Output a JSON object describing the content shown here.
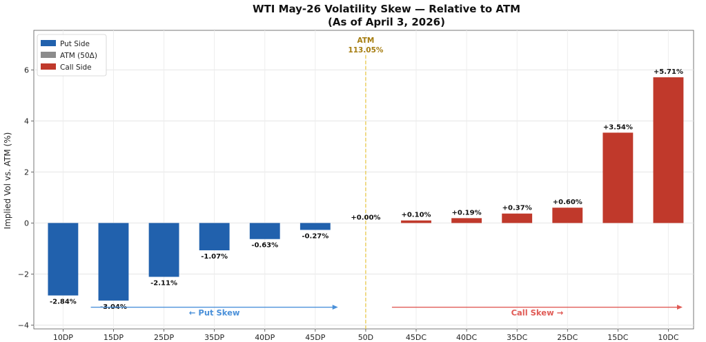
{
  "chart_data": {
    "type": "bar",
    "title_line1": "WTI May-26 Volatility Skew — Relative to ATM",
    "title_line2": "(As of April 3, 2026)",
    "xlabel": "",
    "ylabel": "Implied Vol vs. ATM (%)",
    "ylim": [
      -4.15,
      7.55
    ],
    "yticks": [
      -4,
      -2,
      0,
      2,
      4,
      6
    ],
    "ytick_labels": [
      "−4",
      "−2",
      "0",
      "2",
      "4",
      "6"
    ],
    "grid": true,
    "categories": [
      "10DP",
      "15DP",
      "25DP",
      "35DP",
      "40DP",
      "45DP",
      "50D",
      "45DC",
      "40DC",
      "35DC",
      "25DC",
      "15DC",
      "10DC"
    ],
    "values": [
      -2.84,
      -3.04,
      -2.11,
      -1.07,
      -0.63,
      -0.27,
      0.0,
      0.1,
      0.19,
      0.37,
      0.6,
      3.54,
      5.71
    ],
    "sides": [
      "put",
      "put",
      "put",
      "put",
      "put",
      "put",
      "atm",
      "call",
      "call",
      "call",
      "call",
      "call",
      "call"
    ],
    "value_labels": [
      "-2.84%",
      "-3.04%",
      "-2.11%",
      "-1.07%",
      "-0.63%",
      "-0.27%",
      "+0.00%",
      "+0.10%",
      "+0.19%",
      "+0.37%",
      "+0.60%",
      "+3.54%",
      "+5.71%"
    ],
    "legend": [
      {
        "label": "Put Side",
        "color": "#2161ad"
      },
      {
        "label": "ATM (50Δ)",
        "color": "#8c8c8c"
      },
      {
        "label": "Call Side",
        "color": "#c0392b"
      }
    ],
    "legend_position": "top-left",
    "atm_line": {
      "label": "ATM",
      "value_label": "113.05%",
      "color": "#e8c84a",
      "text_color": "#a57c0f"
    },
    "annotations": [
      {
        "text": "← Put Skew",
        "color": "#4a90d9",
        "y": -3.3
      },
      {
        "text": "Call Skew →",
        "color": "#e05a55",
        "y": -3.3
      }
    ]
  }
}
